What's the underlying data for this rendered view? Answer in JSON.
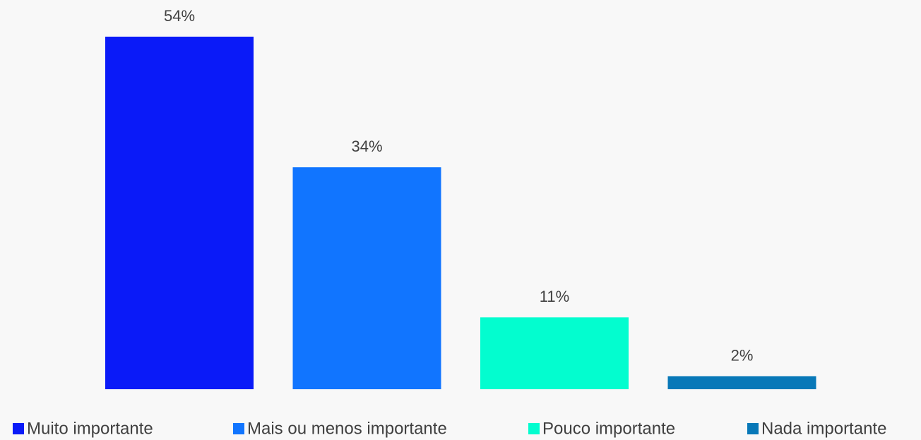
{
  "chart_data": {
    "type": "bar",
    "series": [
      {
        "name": "Muito importante",
        "color": "#0a1af8",
        "values": [
          54
        ],
        "value_labels": [
          "54%"
        ]
      },
      {
        "name": "Mais ou menos importante",
        "color": "#1175ff",
        "values": [
          34
        ],
        "value_labels": [
          "34%"
        ]
      },
      {
        "name": "Pouco importante",
        "color": "#03fdcf",
        "values": [
          11
        ],
        "value_labels": [
          "11%"
        ]
      },
      {
        "name": "Nada importante",
        "color": "#0878b8",
        "values": [
          2
        ],
        "value_labels": [
          "2%"
        ]
      }
    ],
    "legend": "bottom"
  }
}
